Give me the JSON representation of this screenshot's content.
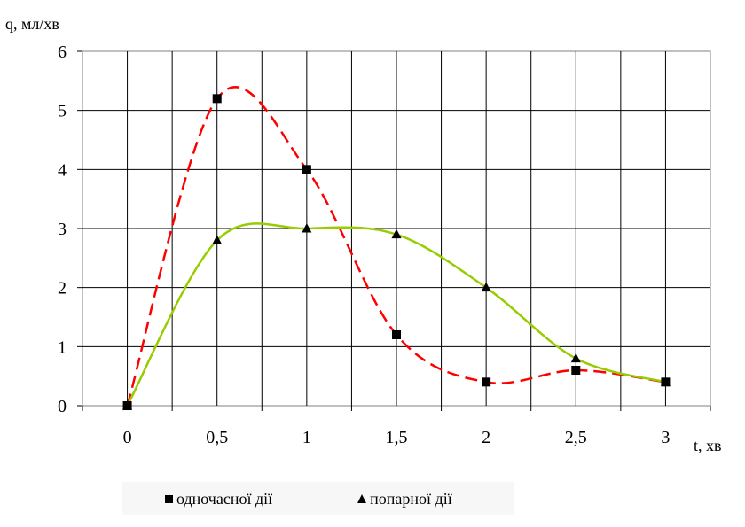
{
  "chart_data": {
    "type": "line",
    "title": "",
    "ylabel": "q, мл/хв",
    "xlabel": "t, хв",
    "x": [
      0,
      0.5,
      1,
      1.5,
      2,
      2.5,
      3
    ],
    "x_tick_labels": [
      "0",
      "0,5",
      "1",
      "1,5",
      "2",
      "2,5",
      "3"
    ],
    "y_tick_labels": [
      "0",
      "1",
      "2",
      "3",
      "4",
      "5",
      "6"
    ],
    "xlim": [
      -0.25,
      3.25
    ],
    "ylim": [
      0,
      6
    ],
    "grid": true,
    "legend_position": "bottom",
    "series": [
      {
        "name": "одночасної дії",
        "marker": "square",
        "line_style": "dashed",
        "color": "#ff0000",
        "values": [
          0,
          5.2,
          4.0,
          1.2,
          0.4,
          0.6,
          0.4
        ]
      },
      {
        "name": "попарної дії",
        "marker": "triangle",
        "line_style": "solid",
        "color": "#99cc00",
        "values": [
          0,
          2.8,
          3.0,
          2.9,
          2.0,
          0.8,
          0.4
        ]
      }
    ]
  }
}
